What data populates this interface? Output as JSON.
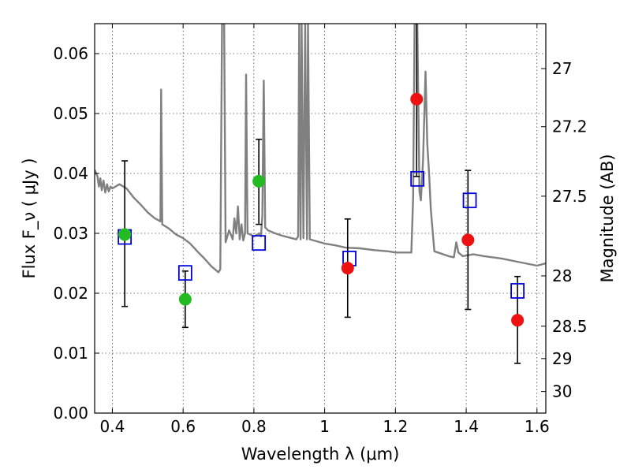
{
  "chart_data": {
    "type": "scatter",
    "title": "",
    "xlabel": "Wavelength  λ (μm)",
    "ylabel": "Flux  F_ν  ( μJy )",
    "ylabel_right": "Magnitude (AB)",
    "xlim": [
      0.35,
      1.625
    ],
    "ylim": [
      0.0,
      0.065
    ],
    "grid": true,
    "grid_style": "dotted",
    "x_ticks": [
      0.4,
      0.6,
      0.8,
      1.0,
      1.2,
      1.4,
      1.6
    ],
    "x_tick_labels": [
      "0.4",
      "0.6",
      "0.8",
      "1",
      "1.2",
      "1.4",
      "1.6"
    ],
    "y_ticks": [
      0.0,
      0.01,
      0.02,
      0.03,
      0.04,
      0.05,
      0.06
    ],
    "y_tick_labels": [
      "0.00",
      "0.01",
      "0.02",
      "0.03",
      "0.04",
      "0.05",
      "0.06"
    ],
    "right_ticks": [
      {
        "label": "27",
        "flux": 0.0575
      },
      {
        "label": "27.2",
        "flux": 0.0478
      },
      {
        "label": "27.5",
        "flux": 0.0362
      },
      {
        "label": "28",
        "flux": 0.0229
      },
      {
        "label": "28.5",
        "flux": 0.0145
      },
      {
        "label": "29",
        "flux": 0.0091
      },
      {
        "label": "30",
        "flux": 0.0036
      }
    ],
    "colors": {
      "spectrum": "#808080",
      "green_points": "#22bb22",
      "red_points": "#ee1111",
      "model_squares": "#0000dd",
      "error_bars": "#000000"
    },
    "series": [
      {
        "marker": "circle",
        "color": "#22bb22",
        "points": [
          {
            "x": 0.435,
            "y": 0.0298,
            "ylo": 0.0178,
            "yhi": 0.0421
          },
          {
            "x": 0.606,
            "y": 0.019,
            "ylo": 0.0143,
            "yhi": 0.0237
          },
          {
            "x": 0.814,
            "y": 0.0387,
            "ylo": 0.0315,
            "yhi": 0.0457
          }
        ]
      },
      {
        "marker": "circle",
        "color": "#ee1111",
        "points": [
          {
            "x": 1.065,
            "y": 0.0242,
            "ylo": 0.016,
            "yhi": 0.0324
          },
          {
            "x": 1.26,
            "y": 0.0524,
            "ylo": 0.0395,
            "yhi": 0.065
          },
          {
            "x": 1.405,
            "y": 0.0289,
            "ylo": 0.0173,
            "yhi": 0.0405
          },
          {
            "x": 1.545,
            "y": 0.0155,
            "ylo": 0.0083,
            "yhi": 0.0228
          }
        ]
      },
      {
        "marker": "open-square",
        "color": "#0000dd",
        "points": [
          {
            "x": 0.435,
            "y": 0.0294
          },
          {
            "x": 0.606,
            "y": 0.0234
          },
          {
            "x": 0.814,
            "y": 0.0284
          },
          {
            "x": 1.07,
            "y": 0.0258
          },
          {
            "x": 1.262,
            "y": 0.0391
          },
          {
            "x": 1.41,
            "y": 0.0355
          },
          {
            "x": 1.545,
            "y": 0.0204
          }
        ]
      },
      {
        "type": "line",
        "color": "#808080",
        "points": [
          [
            0.35,
            0.0406
          ],
          [
            0.358,
            0.0395
          ],
          [
            0.362,
            0.0378
          ],
          [
            0.366,
            0.0392
          ],
          [
            0.37,
            0.0372
          ],
          [
            0.375,
            0.0388
          ],
          [
            0.38,
            0.0368
          ],
          [
            0.385,
            0.0382
          ],
          [
            0.39,
            0.037
          ],
          [
            0.395,
            0.0378
          ],
          [
            0.4,
            0.0375
          ],
          [
            0.42,
            0.0382
          ],
          [
            0.44,
            0.0375
          ],
          [
            0.46,
            0.036
          ],
          [
            0.48,
            0.0348
          ],
          [
            0.5,
            0.0335
          ],
          [
            0.52,
            0.0325
          ],
          [
            0.53,
            0.0322
          ],
          [
            0.536,
            0.032
          ],
          [
            0.538,
            0.054
          ],
          [
            0.541,
            0.0315
          ],
          [
            0.56,
            0.0308
          ],
          [
            0.58,
            0.0298
          ],
          [
            0.6,
            0.0292
          ],
          [
            0.62,
            0.0283
          ],
          [
            0.64,
            0.027
          ],
          [
            0.66,
            0.0258
          ],
          [
            0.68,
            0.0245
          ],
          [
            0.7,
            0.0235
          ],
          [
            0.705,
            0.024
          ],
          [
            0.71,
            0.065
          ],
          [
            0.716,
            0.065
          ],
          [
            0.72,
            0.0285
          ],
          [
            0.73,
            0.0305
          ],
          [
            0.74,
            0.029
          ],
          [
            0.745,
            0.0325
          ],
          [
            0.75,
            0.03
          ],
          [
            0.755,
            0.0345
          ],
          [
            0.76,
            0.029
          ],
          [
            0.765,
            0.0315
          ],
          [
            0.77,
            0.0288
          ],
          [
            0.775,
            0.03
          ],
          [
            0.778,
            0.0565
          ],
          [
            0.782,
            0.03
          ],
          [
            0.79,
            0.0298
          ],
          [
            0.8,
            0.0295
          ],
          [
            0.81,
            0.0298
          ],
          [
            0.815,
            0.03
          ],
          [
            0.82,
            0.0295
          ],
          [
            0.824,
            0.033
          ],
          [
            0.828,
            0.0555
          ],
          [
            0.832,
            0.031
          ],
          [
            0.84,
            0.0305
          ],
          [
            0.86,
            0.03
          ],
          [
            0.88,
            0.0296
          ],
          [
            0.9,
            0.0293
          ],
          [
            0.92,
            0.029
          ],
          [
            0.925,
            0.0295
          ],
          [
            0.928,
            0.065
          ],
          [
            0.932,
            0.029
          ],
          [
            0.935,
            0.065
          ],
          [
            0.94,
            0.0292
          ],
          [
            0.945,
            0.065
          ],
          [
            0.95,
            0.029
          ],
          [
            0.953,
            0.065
          ],
          [
            0.958,
            0.029
          ],
          [
            0.97,
            0.0288
          ],
          [
            1.0,
            0.0283
          ],
          [
            1.03,
            0.028
          ],
          [
            1.06,
            0.0276
          ],
          [
            1.1,
            0.0275
          ],
          [
            1.14,
            0.0272
          ],
          [
            1.18,
            0.027
          ],
          [
            1.2,
            0.0268
          ],
          [
            1.23,
            0.0268
          ],
          [
            1.245,
            0.0268
          ],
          [
            1.25,
            0.036
          ],
          [
            1.254,
            0.065
          ],
          [
            1.262,
            0.065
          ],
          [
            1.268,
            0.037
          ],
          [
            1.272,
            0.0355
          ],
          [
            1.278,
            0.042
          ],
          [
            1.285,
            0.057
          ],
          [
            1.29,
            0.045
          ],
          [
            1.295,
            0.04
          ],
          [
            1.3,
            0.034
          ],
          [
            1.31,
            0.027
          ],
          [
            1.33,
            0.0266
          ],
          [
            1.35,
            0.0262
          ],
          [
            1.365,
            0.026
          ],
          [
            1.372,
            0.0285
          ],
          [
            1.378,
            0.0268
          ],
          [
            1.39,
            0.0262
          ],
          [
            1.42,
            0.0265
          ],
          [
            1.45,
            0.0262
          ],
          [
            1.5,
            0.0258
          ],
          [
            1.55,
            0.0252
          ],
          [
            1.6,
            0.0246
          ],
          [
            1.625,
            0.025
          ]
        ]
      }
    ]
  }
}
